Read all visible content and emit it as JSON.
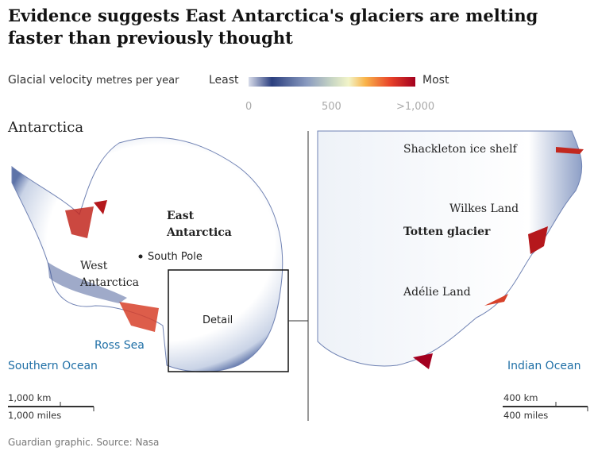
{
  "title": "Evidence suggests East Antarctica's glaciers are melting faster than previously thought",
  "legend": {
    "label": "Glacial velocity",
    "unit": "metres per year",
    "least": "Least",
    "most": "Most",
    "ticks": [
      "0",
      "500",
      ">1,000"
    ],
    "colors": [
      "#d8dcea",
      "#2b3f7f",
      "#8a9bc0",
      "#eef3d0",
      "#f9b44a",
      "#e8432a",
      "#a3001f"
    ]
  },
  "left_map": {
    "title": "Antarctica",
    "labels": {
      "east": "East Antarctica",
      "west": "West Antarctica",
      "pole": "South Pole",
      "detail": "Detail",
      "ross": "Ross Sea",
      "ocean": "Southern Ocean"
    },
    "scale": {
      "km": "1,000 km",
      "miles": "1,000 miles"
    }
  },
  "right_map": {
    "labels": {
      "shackleton": "Shackleton ice shelf",
      "wilkes": "Wilkes Land",
      "totten": "Totten glacier",
      "adelie": "Adélie Land",
      "ocean": "Indian Ocean"
    },
    "scale": {
      "km": "400 km",
      "miles": "400 miles"
    }
  },
  "source": "Guardian graphic. Source: Nasa"
}
